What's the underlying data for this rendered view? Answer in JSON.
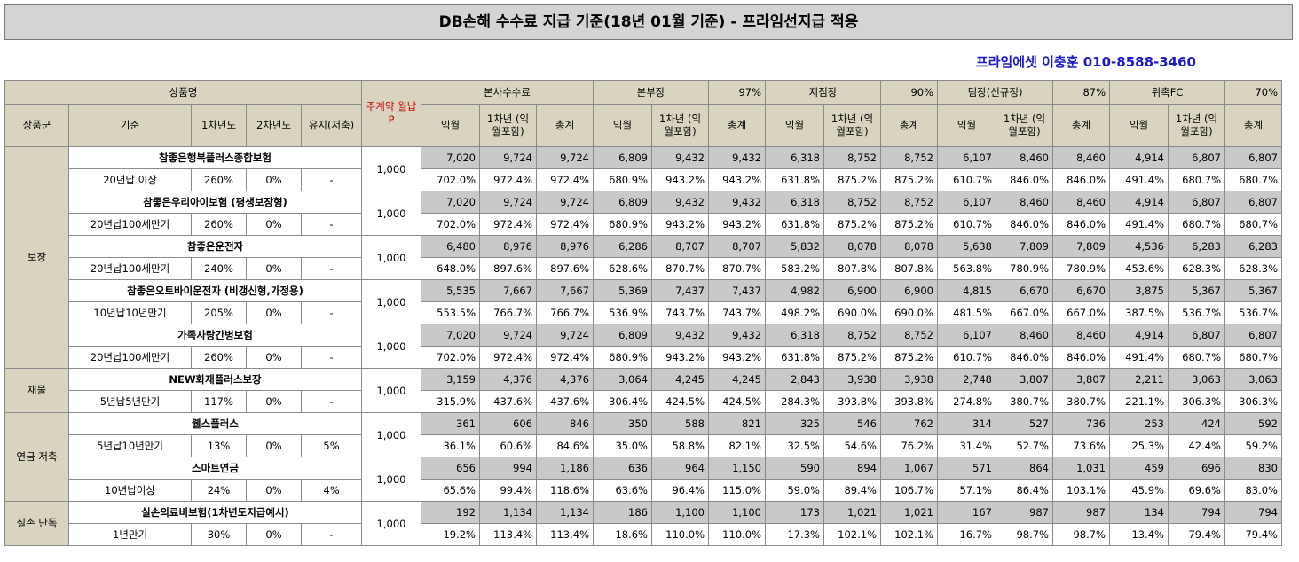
{
  "title": "DB손해 수수료 지급 기준(18년 01월 기준) - 프라임선지급 적용",
  "contact": "프라임에셋 이충훈 010-8588-3460",
  "header": {
    "product_name": "상품명",
    "premium": "주계약 월납P",
    "hq": "본사수수료",
    "branch_hq": "본부장",
    "branch_hq_rate": "97%",
    "branch": "지점장",
    "branch_rate": "90%",
    "team": "팀장(신규정)",
    "team_rate": "87%",
    "fc": "위촉FC",
    "fc_rate": "70%",
    "group": "상품군",
    "basis": "기준",
    "year1": "1차년도",
    "year2": "2차년도",
    "maintain": "유지(저축)",
    "next_month": "익월",
    "first_year": "1차년 (익월포함)",
    "total": "총계"
  },
  "groups": [
    {
      "name": "보장",
      "products": [
        {
          "name": "참좋은행복플러스종합보험",
          "basis": "20년납 이상",
          "y1": "260%",
          "y2": "0%",
          "maint": "-",
          "premium": "1,000",
          "amounts": [
            "7,020",
            "9,724",
            "9,724",
            "6,809",
            "9,432",
            "9,432",
            "6,318",
            "8,752",
            "8,752",
            "6,107",
            "8,460",
            "8,460",
            "4,914",
            "6,807",
            "6,807"
          ],
          "rates": [
            "702.0%",
            "972.4%",
            "972.4%",
            "680.9%",
            "943.2%",
            "943.2%",
            "631.8%",
            "875.2%",
            "875.2%",
            "610.7%",
            "846.0%",
            "846.0%",
            "491.4%",
            "680.7%",
            "680.7%"
          ]
        },
        {
          "name": "참좋은우리아이보험 (평생보장형)",
          "basis": "20년납100세만기",
          "y1": "260%",
          "y2": "0%",
          "maint": "-",
          "premium": "1,000",
          "amounts": [
            "7,020",
            "9,724",
            "9,724",
            "6,809",
            "9,432",
            "9,432",
            "6,318",
            "8,752",
            "8,752",
            "6,107",
            "8,460",
            "8,460",
            "4,914",
            "6,807",
            "6,807"
          ],
          "rates": [
            "702.0%",
            "972.4%",
            "972.4%",
            "680.9%",
            "943.2%",
            "943.2%",
            "631.8%",
            "875.2%",
            "875.2%",
            "610.7%",
            "846.0%",
            "846.0%",
            "491.4%",
            "680.7%",
            "680.7%"
          ]
        },
        {
          "name": "참좋은운전자",
          "basis": "20년납100세만기",
          "y1": "240%",
          "y2": "0%",
          "maint": "-",
          "premium": "1,000",
          "amounts": [
            "6,480",
            "8,976",
            "8,976",
            "6,286",
            "8,707",
            "8,707",
            "5,832",
            "8,078",
            "8,078",
            "5,638",
            "7,809",
            "7,809",
            "4,536",
            "6,283",
            "6,283"
          ],
          "rates": [
            "648.0%",
            "897.6%",
            "897.6%",
            "628.6%",
            "870.7%",
            "870.7%",
            "583.2%",
            "807.8%",
            "807.8%",
            "563.8%",
            "780.9%",
            "780.9%",
            "453.6%",
            "628.3%",
            "628.3%"
          ]
        },
        {
          "name": "참좋은오토바이운전자 (비갱신형,가정용)",
          "basis": "10년납10년만기",
          "y1": "205%",
          "y2": "0%",
          "maint": "-",
          "premium": "1,000",
          "amounts": [
            "5,535",
            "7,667",
            "7,667",
            "5,369",
            "7,437",
            "7,437",
            "4,982",
            "6,900",
            "6,900",
            "4,815",
            "6,670",
            "6,670",
            "3,875",
            "5,367",
            "5,367"
          ],
          "rates": [
            "553.5%",
            "766.7%",
            "766.7%",
            "536.9%",
            "743.7%",
            "743.7%",
            "498.2%",
            "690.0%",
            "690.0%",
            "481.5%",
            "667.0%",
            "667.0%",
            "387.5%",
            "536.7%",
            "536.7%"
          ]
        },
        {
          "name": "가족사랑간병보험",
          "basis": "20년납100세만기",
          "y1": "260%",
          "y2": "0%",
          "maint": "-",
          "premium": "1,000",
          "amounts": [
            "7,020",
            "9,724",
            "9,724",
            "6,809",
            "9,432",
            "9,432",
            "6,318",
            "8,752",
            "8,752",
            "6,107",
            "8,460",
            "8,460",
            "4,914",
            "6,807",
            "6,807"
          ],
          "rates": [
            "702.0%",
            "972.4%",
            "972.4%",
            "680.9%",
            "943.2%",
            "943.2%",
            "631.8%",
            "875.2%",
            "875.2%",
            "610.7%",
            "846.0%",
            "846.0%",
            "491.4%",
            "680.7%",
            "680.7%"
          ]
        }
      ]
    },
    {
      "name": "재물",
      "products": [
        {
          "name": "NEW화재플러스보장",
          "basis": "5년납5년만기",
          "y1": "117%",
          "y2": "0%",
          "maint": "-",
          "premium": "1,000",
          "amounts": [
            "3,159",
            "4,376",
            "4,376",
            "3,064",
            "4,245",
            "4,245",
            "2,843",
            "3,938",
            "3,938",
            "2,748",
            "3,807",
            "3,807",
            "2,211",
            "3,063",
            "3,063"
          ],
          "rates": [
            "315.9%",
            "437.6%",
            "437.6%",
            "306.4%",
            "424.5%",
            "424.5%",
            "284.3%",
            "393.8%",
            "393.8%",
            "274.8%",
            "380.7%",
            "380.7%",
            "221.1%",
            "306.3%",
            "306.3%"
          ]
        }
      ]
    },
    {
      "name": "연금 저축",
      "products": [
        {
          "name": "웰스플러스",
          "basis": "5년납10년만기",
          "y1": "13%",
          "y2": "0%",
          "maint": "5%",
          "premium": "1,000",
          "amounts": [
            "361",
            "606",
            "846",
            "350",
            "588",
            "821",
            "325",
            "546",
            "762",
            "314",
            "527",
            "736",
            "253",
            "424",
            "592"
          ],
          "rates": [
            "36.1%",
            "60.6%",
            "84.6%",
            "35.0%",
            "58.8%",
            "82.1%",
            "32.5%",
            "54.6%",
            "76.2%",
            "31.4%",
            "52.7%",
            "73.6%",
            "25.3%",
            "42.4%",
            "59.2%"
          ]
        },
        {
          "name": "스마트연금",
          "basis": "10년납이상",
          "y1": "24%",
          "y2": "0%",
          "maint": "4%",
          "premium": "1,000",
          "amounts": [
            "656",
            "994",
            "1,186",
            "636",
            "964",
            "1,150",
            "590",
            "894",
            "1,067",
            "571",
            "864",
            "1,031",
            "459",
            "696",
            "830"
          ],
          "rates": [
            "65.6%",
            "99.4%",
            "118.6%",
            "63.6%",
            "96.4%",
            "115.0%",
            "59.0%",
            "89.4%",
            "106.7%",
            "57.1%",
            "86.4%",
            "103.1%",
            "45.9%",
            "69.6%",
            "83.0%"
          ]
        }
      ]
    },
    {
      "name": "실손 단독",
      "products": [
        {
          "name": "실손의료비보험(1차년도지급예시)",
          "basis": "1년만기",
          "y1": "30%",
          "y2": "0%",
          "maint": "-",
          "premium": "1,000",
          "amounts": [
            "192",
            "1,134",
            "1,134",
            "186",
            "1,100",
            "1,100",
            "173",
            "1,021",
            "1,021",
            "167",
            "987",
            "987",
            "134",
            "794",
            "794"
          ],
          "rates": [
            "19.2%",
            "113.4%",
            "113.4%",
            "18.6%",
            "110.0%",
            "110.0%",
            "17.3%",
            "102.1%",
            "102.1%",
            "16.7%",
            "98.7%",
            "98.7%",
            "13.4%",
            "79.4%",
            "79.4%"
          ]
        }
      ]
    }
  ]
}
